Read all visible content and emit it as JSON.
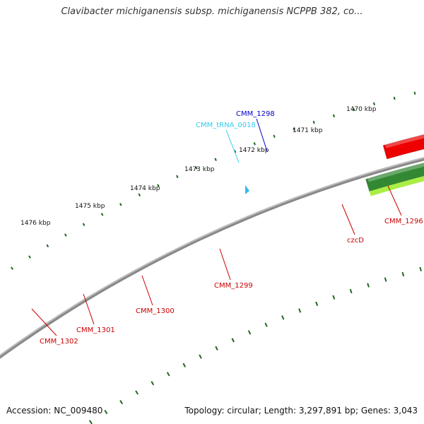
{
  "title": "Clavibacter michiganensis subsp. michiganensis NCPPB 382, co...",
  "footer": {
    "accession": "Accession: NC_009480",
    "summary": "Topology: circular; Length: 3,297,891 bp; Genes: 3,043"
  },
  "ruler": [
    "1470 kbp",
    "1471 kbp",
    "1472 kbp",
    "1473 kbp",
    "1474 kbp",
    "1475 kbp",
    "1476 kbp"
  ],
  "genes": [
    {
      "label": "CMM_1298",
      "color": "#0000cc"
    },
    {
      "label": "CMM_tRNA_0018",
      "color": "#33ccee"
    },
    {
      "label": "czcD",
      "color": "#cc0000"
    },
    {
      "label": "CMM_1296",
      "color": "#cc0000"
    },
    {
      "label": "CMM_1299",
      "color": "#cc0000"
    },
    {
      "label": "CMM_1300",
      "color": "#cc0000"
    },
    {
      "label": "CMM_1301",
      "color": "#cc0000"
    },
    {
      "label": "CMM_1302",
      "color": "#cc0000"
    }
  ],
  "colors": {
    "backbone": "#888888",
    "cds_red": "#ee0000",
    "cds_pink": "#f08080",
    "cyan": "#22cccc",
    "sky": "#33bbee",
    "lime": "#aaee44",
    "dark_green": "#338833",
    "navy": "#444488",
    "blue": "#0000ee",
    "grey": "#666666",
    "tick_green": "#226622"
  }
}
